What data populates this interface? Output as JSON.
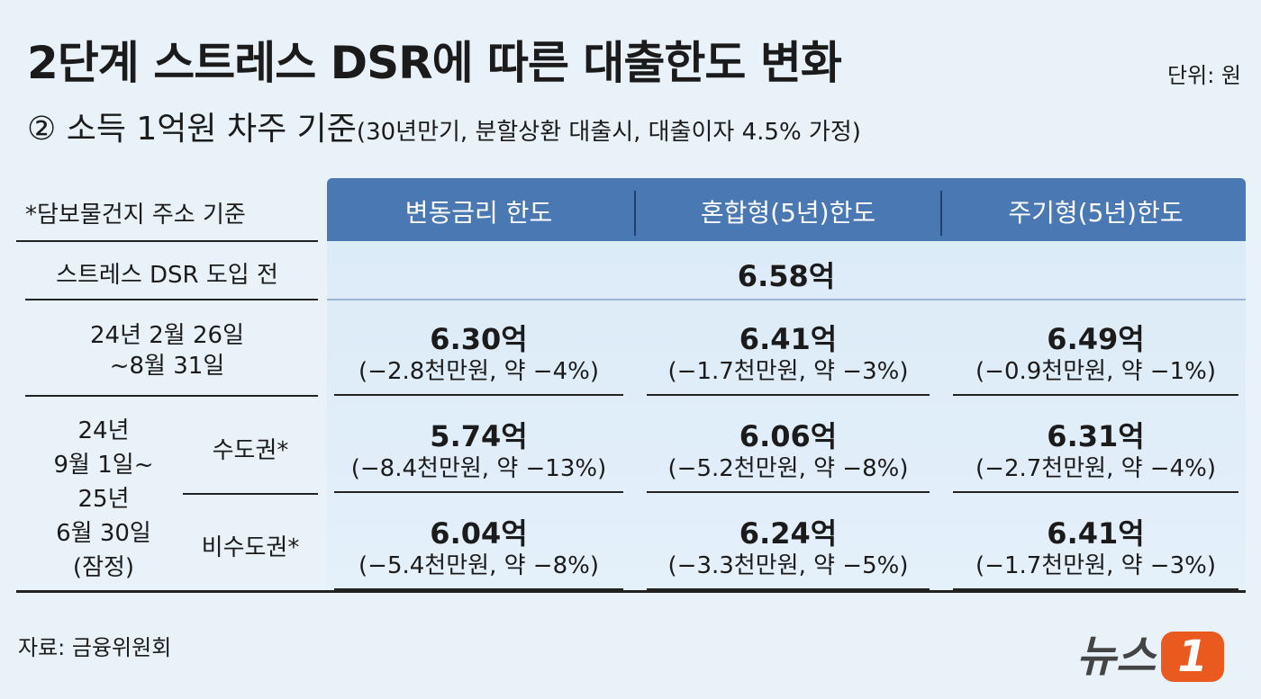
{
  "header": {
    "title": "2단계 스트레스 DSR에 따른 대출한도 변화",
    "unit": "단위: 원",
    "subtitle": "② 소득 1억원 차주 기준",
    "subtitle_note": "(30년만기, 분할상환 대출시, 대출이자 4.5% 가정)"
  },
  "table": {
    "note": "*담보물건지 주소 기준",
    "columns": [
      "변동금리 한도",
      "혼합형(5년)한도",
      "주기형(5년)한도"
    ],
    "before": {
      "label": "스트레스 DSR 도입 전",
      "value": "6.58억"
    },
    "phase1": {
      "label": [
        "24년 2월 26일",
        "~8월 31일"
      ],
      "cells": [
        {
          "amount": "6.30억",
          "change": "(−2.8천만원, 약 −4%)"
        },
        {
          "amount": "6.41억",
          "change": "(−1.7천만원, 약 −3%)"
        },
        {
          "amount": "6.49억",
          "change": "(−0.9천만원, 약 −1%)"
        }
      ]
    },
    "phase2": {
      "label": [
        "24년",
        "9월 1일~",
        "25년",
        "6월 30일",
        "(잠정)"
      ],
      "rows": [
        {
          "label": "수도권*",
          "cells": [
            {
              "amount": "5.74억",
              "change": "(−8.4천만원, 약 −13%)"
            },
            {
              "amount": "6.06억",
              "change": "(−5.2천만원, 약 −8%)"
            },
            {
              "amount": "6.31억",
              "change": "(−2.7천만원, 약 −4%)"
            }
          ]
        },
        {
          "label": "비수도권*",
          "cells": [
            {
              "amount": "6.04억",
              "change": "(−5.4천만원, 약 −8%)"
            },
            {
              "amount": "6.24억",
              "change": "(−3.3천만원, 약 −5%)"
            },
            {
              "amount": "6.41억",
              "change": "(−1.7천만원, 약 −3%)"
            }
          ]
        }
      ]
    }
  },
  "footer": {
    "source": "자료: 금융위원회",
    "logo_text": "뉴스",
    "logo_number": "1"
  }
}
